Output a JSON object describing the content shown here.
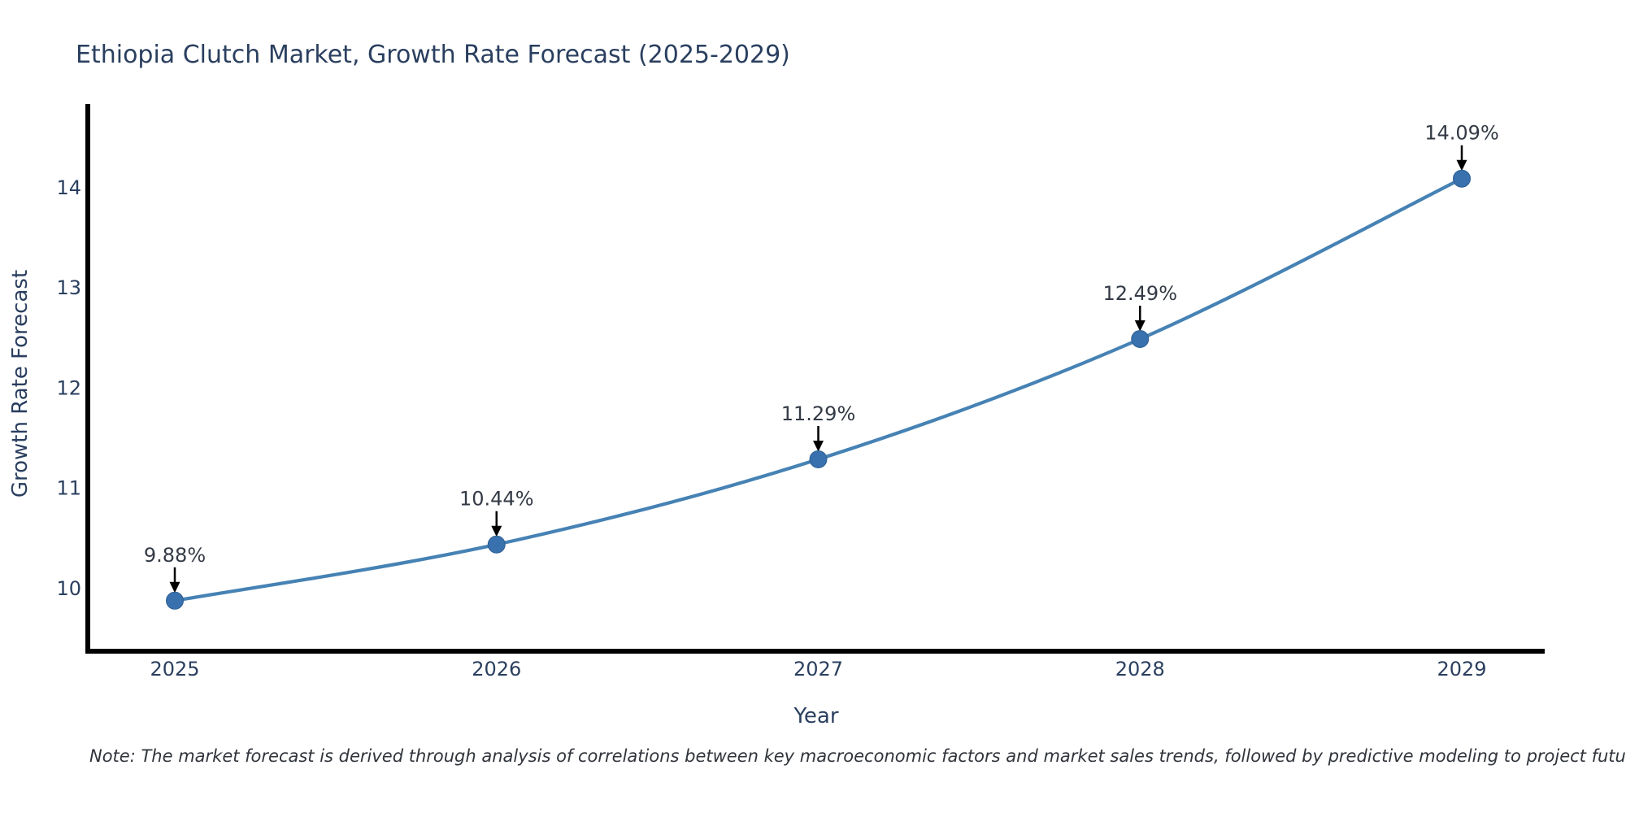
{
  "title": "Ethiopia Clutch Market, Growth Rate Forecast (2025-2029)",
  "note": "Note: The market forecast is derived through analysis of correlations between key macroeconomic factors and market sales trends, followed by predictive modeling to project future sales.",
  "colors": {
    "text": "#2a3f5f",
    "annotation_text": "#333a45",
    "axis_line": "#000000",
    "line": "#4682b4",
    "marker": "#3871ad",
    "arrow": "#000000",
    "background": "#ffffff"
  },
  "chart_data": {
    "type": "line",
    "title": "Ethiopia Clutch Market, Growth Rate Forecast (2025-2029)",
    "categories": [
      "2025",
      "2026",
      "2027",
      "2028",
      "2029"
    ],
    "x": [
      2025,
      2026,
      2027,
      2028,
      2029
    ],
    "values": [
      9.88,
      10.44,
      11.29,
      12.49,
      14.09
    ],
    "point_labels": [
      "9.88%",
      "10.44%",
      "11.29%",
      "12.49%",
      "14.09%"
    ],
    "series": [
      {
        "name": "Growth Rate Forecast",
        "values": [
          9.88,
          10.44,
          11.29,
          12.49,
          14.09
        ]
      }
    ],
    "xlabel": "Year",
    "ylabel": "Growth Rate Forecast",
    "yticks": [
      10,
      11,
      12,
      13,
      14
    ],
    "ylim": [
      9.38,
      14.85
    ],
    "xlim": [
      2024.73,
      2029.26
    ],
    "grid": false,
    "legend_position": "none",
    "line_shape": "spline",
    "markers": true,
    "annotations_arrow": true
  }
}
